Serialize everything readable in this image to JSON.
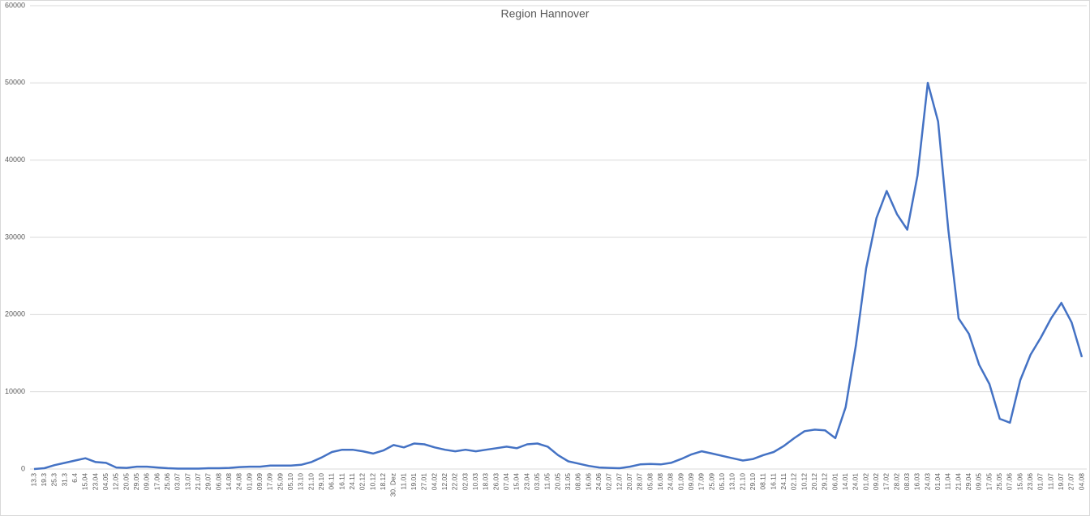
{
  "chart_data": {
    "type": "line",
    "title": "Region Hannover",
    "categories": [
      "13.3",
      "19.3",
      "25.3",
      "31.3",
      "6.4",
      "15.04",
      "23.04",
      "04.05",
      "12.05",
      "20.05",
      "29.05",
      "09.06",
      "17.06",
      "25.06",
      "03.07",
      "13.07",
      "21.07",
      "29.07",
      "06.08",
      "14.08",
      "24.08",
      "01.09",
      "09.09",
      "17.09",
      "25.09",
      "05.10",
      "13.10",
      "21.10",
      "29.10",
      "06.11",
      "16.11",
      "24.11",
      "02.12",
      "10.12",
      "18.12",
      "30. Dez",
      "11.01",
      "19.01",
      "27.01",
      "04.02",
      "12.02",
      "22.02",
      "02.03",
      "10.03",
      "18.03",
      "26.03",
      "07.04",
      "15.04",
      "23.04",
      "03.05",
      "11.05",
      "20.05",
      "31.05",
      "08.06",
      "16.06",
      "24.06",
      "02.07",
      "12.07",
      "20.07",
      "28.07",
      "05.08",
      "16.08",
      "24.08",
      "01.09",
      "09.09",
      "17.09",
      "25.09",
      "05.10",
      "13.10",
      "21.10",
      "29.10",
      "08.11",
      "16.11",
      "24.11",
      "02.12",
      "10.12",
      "20.12",
      "29.12",
      "06.01",
      "14.01",
      "24.01",
      "01.02",
      "09.02",
      "17.02",
      "28.02",
      "08.03",
      "16.03",
      "24.03",
      "01.04",
      "11.04",
      "21.04",
      "29.04",
      "09.05",
      "17.05",
      "25.05",
      "07.06",
      "15.06",
      "23.06",
      "01.07",
      "11.07",
      "19.07",
      "27.07",
      "04.08"
    ],
    "series": [
      {
        "name": "Region Hannover",
        "color": "#4472c4",
        "values": [
          0,
          100,
          500,
          800,
          1100,
          1400,
          900,
          800,
          200,
          150,
          300,
          300,
          200,
          100,
          50,
          50,
          50,
          100,
          100,
          150,
          250,
          300,
          300,
          450,
          450,
          450,
          550,
          900,
          1500,
          2200,
          2500,
          2500,
          2300,
          2000,
          2400,
          3100,
          2800,
          3300,
          3200,
          2800,
          2500,
          2300,
          2500,
          2300,
          2500,
          2700,
          2900,
          2700,
          3200,
          3300,
          2900,
          1800,
          1000,
          700,
          400,
          200,
          150,
          100,
          300,
          600,
          650,
          600,
          800,
          1300,
          1900,
          2300,
          2000,
          1700,
          1400,
          1100,
          1300,
          1800,
          2200,
          3000,
          4000,
          4900,
          5100,
          5000,
          4000,
          8000,
          16000,
          26000,
          32500,
          36000,
          33000,
          31000,
          38000,
          50000,
          45000,
          31000,
          19500,
          17500,
          13500,
          11000,
          6500,
          6000,
          11500,
          14800,
          17000,
          19500,
          21500,
          19000,
          14500
        ]
      }
    ],
    "ylim": [
      0,
      60000
    ],
    "yticks": [
      0,
      10000,
      20000,
      30000,
      40000,
      50000,
      60000
    ],
    "grid": true
  }
}
